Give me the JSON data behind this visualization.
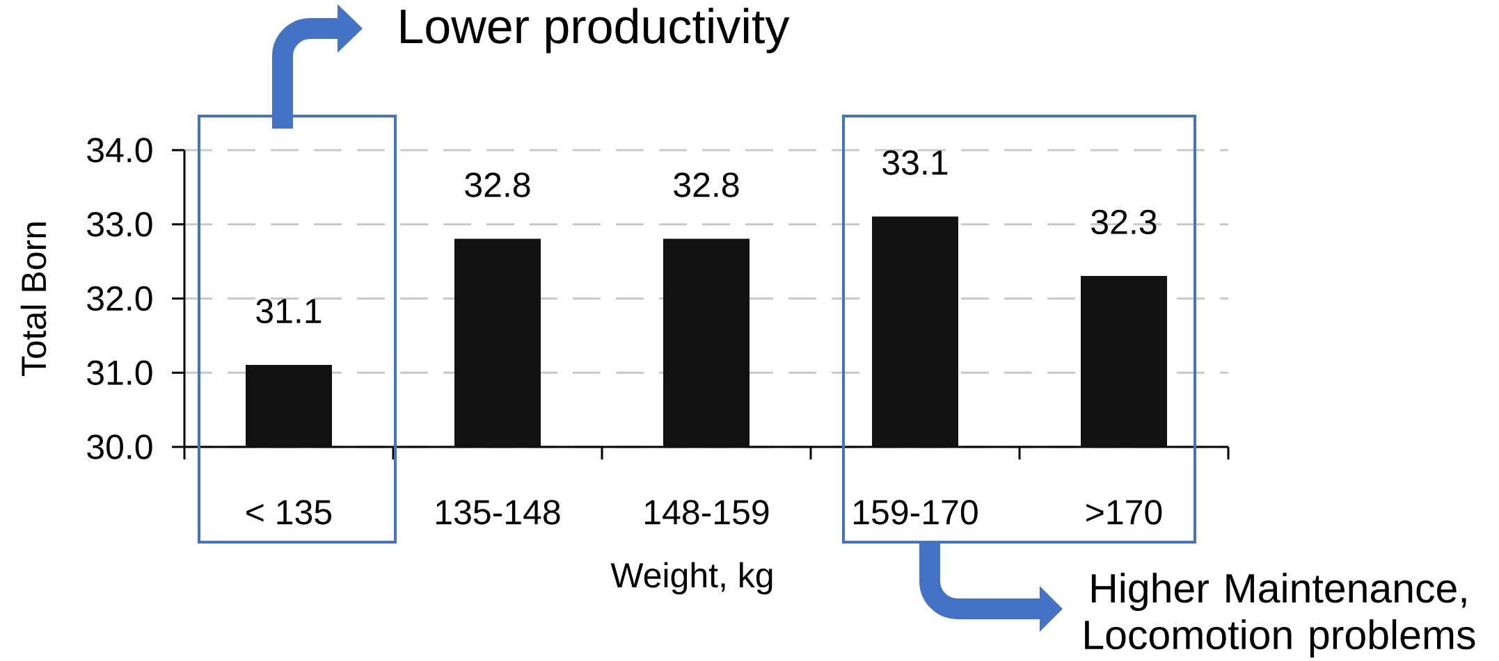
{
  "chart_data": {
    "type": "bar",
    "categories": [
      "< 135",
      "135-148",
      "148-159",
      "159-170",
      ">170"
    ],
    "values": [
      31.1,
      32.8,
      32.8,
      33.1,
      32.3
    ],
    "color": "#111111",
    "xlabel": "Weight, kg",
    "ylabel": "Total Born",
    "ylim": [
      30,
      34
    ],
    "yticks": [
      {
        "value": 30,
        "label": "30.0"
      },
      {
        "value": 31,
        "label": "31.0"
      },
      {
        "value": 32,
        "label": "32.0"
      },
      {
        "value": 33,
        "label": "33.0"
      },
      {
        "value": 34,
        "label": "34.0"
      }
    ],
    "grid": "y",
    "data_labels": true,
    "annotations": [
      "Lower productivity",
      "Higher Maintenance, Locomotion problems"
    ]
  }
}
